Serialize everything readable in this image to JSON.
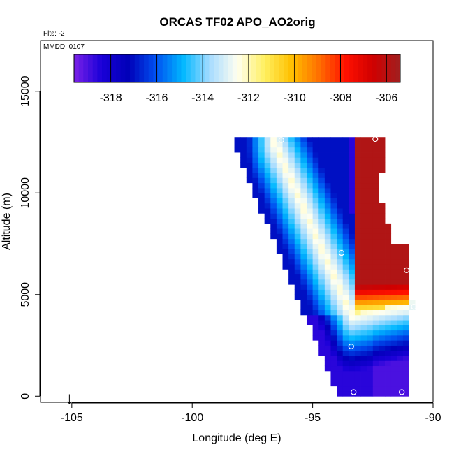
{
  "chart_data": {
    "type": "heatmap",
    "title": "ORCAS TF02 APO_AO2orig",
    "flights_note": "Flts: -2",
    "date_note": "MMDD: 0107",
    "xlabel": "Longitude (deg E)",
    "ylabel": "Altitude (m)",
    "xlim": [
      -106.3,
      -90.0
    ],
    "ylim": [
      -300,
      17500
    ],
    "xticks": [
      -105,
      -100,
      -95,
      -90
    ],
    "xtick_labels": [
      "-105",
      "-100",
      "-95",
      "-90"
    ],
    "yticks": [
      0,
      5000,
      10000,
      15000
    ],
    "ytick_labels": [
      "0",
      "5000",
      "10000",
      "15000"
    ],
    "colorbar": {
      "min": -319.6,
      "max": -305.4,
      "ticks": [
        -318,
        -316,
        -314,
        -312,
        -310,
        -308,
        -306
      ],
      "tick_labels": [
        "-318",
        "-316",
        "-314",
        "-312",
        "-310",
        "-308",
        "-306"
      ],
      "colors": [
        "#7B22E8",
        "#1A00D8",
        "#0000B8",
        "#0050F0",
        "#00B8FF",
        "#A8DCFF",
        "#FFFFF0",
        "#FFF060",
        "#FFC000",
        "#FF7000",
        "#FF1000",
        "#D00000",
        "#A02020"
      ]
    },
    "field": {
      "description": "APO (per meg) curtain interpolated between lower-left and upper-right of the flight track",
      "lon_step": 0.25,
      "alt_step": 250,
      "core_value": -312.2,
      "upper_value": -317.0,
      "deep_value": -318.6,
      "high_value": -305.8,
      "v_apex": [
        -93.4,
        4000
      ],
      "v_top_left": [
        -96.6,
        12500
      ],
      "v_right": [
        -91.0,
        4600
      ]
    },
    "sample_points": [
      {
        "lon": -96.3,
        "alt": 12600
      },
      {
        "lon": -92.4,
        "alt": 12650
      },
      {
        "lon": -93.8,
        "alt": 7050
      },
      {
        "lon": -91.1,
        "alt": 6200
      },
      {
        "lon": -90.8,
        "alt": 4400
      },
      {
        "lon": -93.4,
        "alt": 2450
      },
      {
        "lon": -93.3,
        "alt": 200
      },
      {
        "lon": -91.3,
        "alt": 200
      }
    ],
    "home_marker_lon": -105.1,
    "home_marker_arrow": "↓"
  }
}
